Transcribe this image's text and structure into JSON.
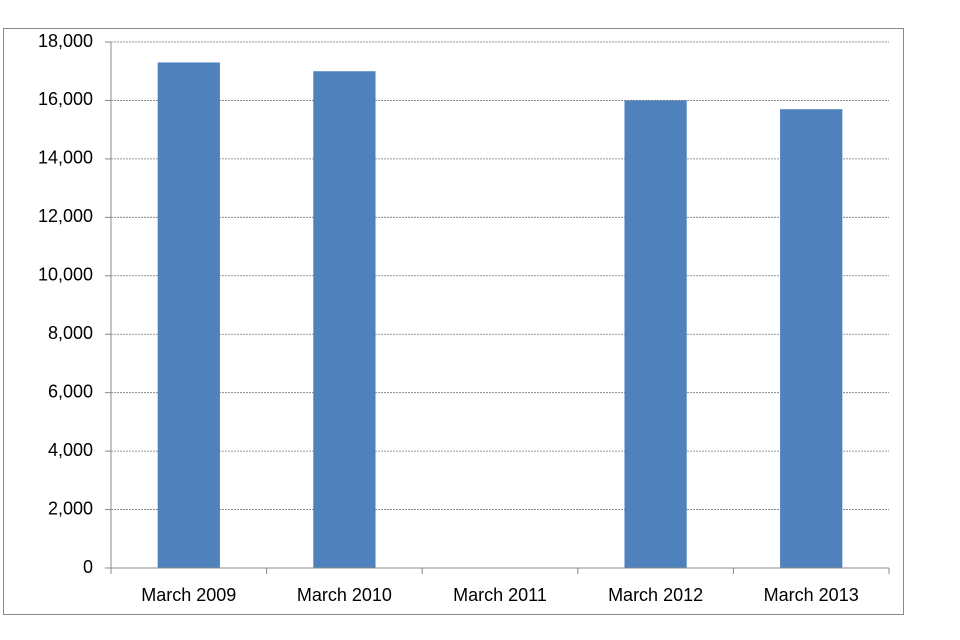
{
  "chart_data": {
    "type": "bar",
    "categories": [
      "March 2009",
      "March 2010",
      "March 2011",
      "March 2012",
      "March 2013"
    ],
    "values": [
      17300,
      17000,
      null,
      16000,
      15700
    ],
    "color": "#4f81bd",
    "ylim": [
      0,
      18000
    ],
    "yticks": [
      0,
      {
        "value": 2000,
        "label": "2,000"
      },
      {
        "value": 4000,
        "label": "4,000"
      },
      {
        "value": 6000,
        "label": "6,000"
      },
      {
        "value": 8000,
        "label": "8,000"
      },
      {
        "value": 10000,
        "label": "10,000"
      },
      {
        "value": 12000,
        "label": "12,000"
      },
      {
        "value": 14000,
        "label": "14,000"
      },
      {
        "value": 16000,
        "label": "16,000"
      },
      {
        "value": 18000,
        "label": "18,000"
      }
    ],
    "grid": true
  }
}
